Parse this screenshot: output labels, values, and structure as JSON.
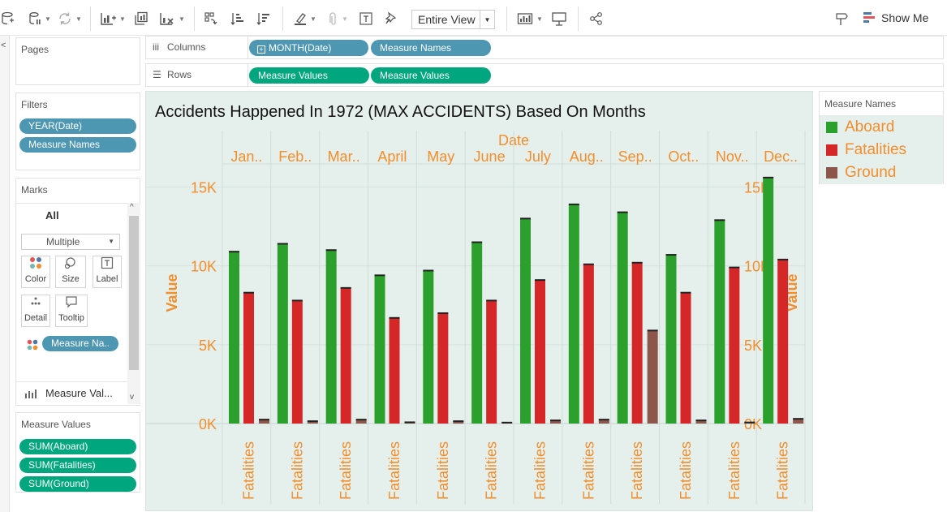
{
  "toolbar": {
    "fit_value": "Entire View",
    "show_me_label": "Show Me"
  },
  "pages": {
    "title": "Pages"
  },
  "filters": {
    "title": "Filters",
    "items": [
      "YEAR(Date)",
      "Measure Names"
    ]
  },
  "marks": {
    "title": "Marks",
    "all_label": "All",
    "mark_type": "Multiple",
    "buttons": [
      "Color",
      "Size",
      "Label",
      "Detail",
      "Tooltip"
    ],
    "color_pill": "Measure Na..",
    "measure_values_label": "Measure Val..."
  },
  "measure_values": {
    "title": "Measure Values",
    "items": [
      "SUM(Aboard)",
      "SUM(Fatalities)",
      "SUM(Ground)"
    ]
  },
  "shelves": {
    "columns_label": "Columns",
    "columns_pills": [
      "MONTH(Date)",
      "Measure Names"
    ],
    "rows_label": "Rows",
    "rows_pills": [
      "Measure Values",
      "Measure Values"
    ]
  },
  "legend": {
    "title": "Measure Names",
    "items": [
      {
        "label": "Aboard",
        "color": "#2ca02c"
      },
      {
        "label": "Fatalities",
        "color": "#d62728"
      },
      {
        "label": "Ground",
        "color": "#8c564b"
      }
    ]
  },
  "chart_data": {
    "type": "bar",
    "title": "Accidents Happened In 1972 (MAX ACCIDENTS) Based On Months",
    "column_header": "Date",
    "categories": [
      "Jan..",
      "Feb..",
      "Mar..",
      "April",
      "May",
      "June",
      "July",
      "Aug..",
      "Sep..",
      "Oct..",
      "Nov..",
      "Dec.."
    ],
    "sub_label": "Fatalities",
    "ylabel": "Value",
    "ylim": [
      0,
      16000
    ],
    "y_ticks": [
      0,
      5000,
      10000,
      15000
    ],
    "y_tick_labels": [
      "0K",
      "5K",
      "10K",
      "15K"
    ],
    "series": [
      {
        "name": "Aboard",
        "color": "#2ca02c",
        "values": [
          10900,
          11400,
          11000,
          9400,
          9700,
          11500,
          13000,
          13900,
          13400,
          10700,
          12900,
          15600
        ]
      },
      {
        "name": "Fatalities",
        "color": "#d62728",
        "values": [
          8300,
          7800,
          8600,
          6700,
          7000,
          7800,
          9100,
          10100,
          10200,
          8300,
          9900,
          10400
        ]
      },
      {
        "name": "Ground",
        "color": "#8c564b",
        "values": [
          250,
          150,
          250,
          80,
          150,
          60,
          200,
          250,
          5900,
          200,
          70,
          300
        ]
      }
    ]
  }
}
